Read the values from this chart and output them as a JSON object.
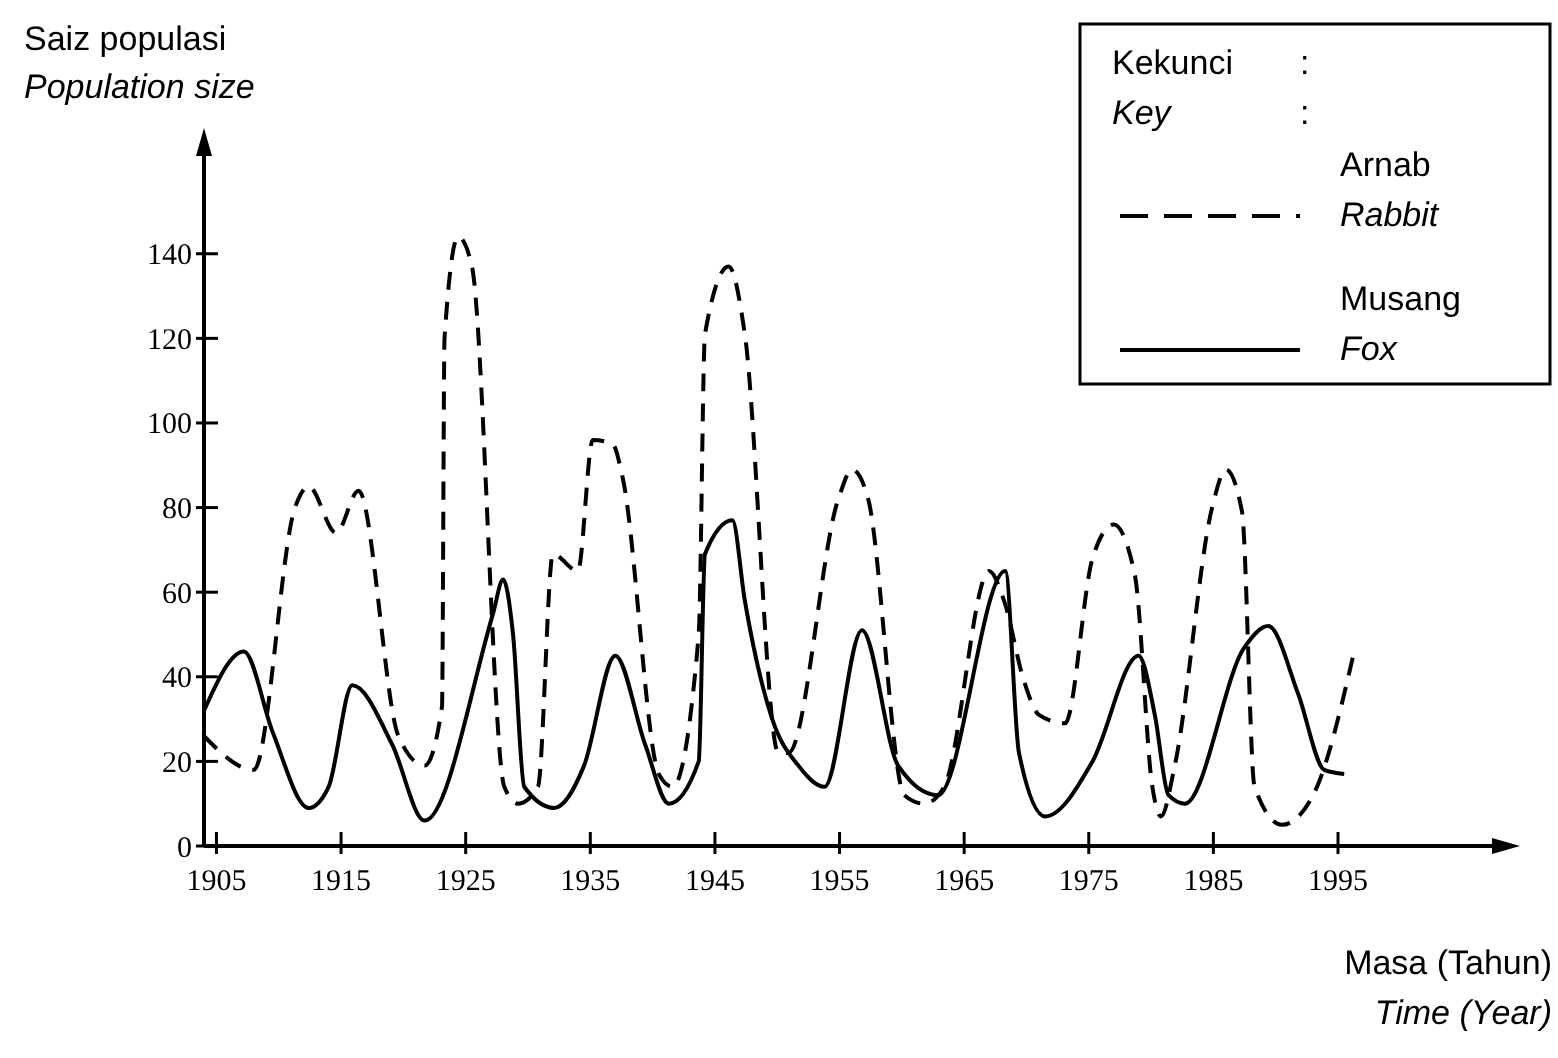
{
  "chart_data": {
    "type": "line",
    "xlabel": "Masa (Tahun)\nTime (Year)",
    "ylabel": "Saiz populasi\nPopulation size",
    "legend_title": "Kekunci :\nKey :",
    "legend": "top right",
    "grid": false,
    "xlim": [
      1904,
      2008
    ],
    "ylim": [
      0,
      165
    ],
    "xticks": [
      1905,
      1915,
      1925,
      1935,
      1945,
      1955,
      1965,
      1975,
      1985,
      1995
    ],
    "yticks": [
      0,
      20,
      40,
      60,
      80,
      100,
      120,
      140
    ],
    "series": [
      {
        "name": "Arnab\nRabbit",
        "color": "#000000",
        "line_style": "dashed",
        "x": [
          1904,
          1908,
          1911.3,
          1912.4,
          1914.6,
          1916.4,
          1919.6,
          1921.7,
          1923.1,
          1923.3,
          1924.4,
          1925.5,
          1928.1,
          1929.2,
          1930.8,
          1932,
          1934,
          1935.2,
          1936.8,
          1937.6,
          1940.5,
          1941.6,
          1943.7,
          1944.2,
          1946.1,
          1947.4,
          1950.1,
          1950.9,
          1954.9,
          1956,
          1957.3,
          1960.2,
          1961.8,
          1963.4,
          1967,
          1968.2,
          1969.8,
          1971,
          1973.1,
          1975.3,
          1977,
          1978.7,
          1980.1,
          1980.8,
          1981.9,
          1984.9,
          1986,
          1987.3,
          1988.3,
          1990.5,
          1993,
          1996.3
        ],
        "values": [
          26,
          18,
          80,
          85,
          74,
          84,
          26,
          19,
          33,
          120,
          144,
          137,
          14,
          10,
          14,
          69,
          65,
          96,
          95,
          87,
          17,
          14,
          50,
          121,
          137,
          121,
          22,
          22,
          82,
          89,
          82,
          12,
          10,
          14,
          65,
          58,
          39,
          31,
          29,
          68,
          76,
          64,
          14,
          7,
          19,
          80,
          89,
          79,
          14,
          5,
          12,
          46
        ]
      },
      {
        "name": "Musang\nFox",
        "color": "#000000",
        "line_style": "solid",
        "x": [
          1904,
          1907.2,
          1909.5,
          1912.4,
          1914,
          1915.9,
          1919.1,
          1921.7,
          1927.2,
          1928,
          1928.8,
          1929.7,
          1932.1,
          1934.5,
          1937,
          1939.4,
          1941.3,
          1943.7,
          1944.2,
          1946.4,
          1947.4,
          1949.6,
          1951.7,
          1953.8,
          1956.8,
          1959.7,
          1962.9,
          1968.3,
          1969.4,
          1971.5,
          1975.3,
          1979,
          1980.3,
          1981.4,
          1982.7,
          1987.5,
          1989.4,
          1991.8,
          1993.9,
          1995.5
        ],
        "values": [
          32,
          46,
          27,
          9,
          14,
          38,
          24,
          6,
          55,
          63,
          50,
          14,
          9,
          19,
          45,
          24,
          10,
          20,
          69,
          77,
          58,
          30,
          19,
          14,
          51,
          19,
          12,
          65,
          22,
          7,
          20,
          45,
          31,
          12,
          10,
          47,
          52,
          36,
          18,
          17
        ]
      }
    ]
  }
}
